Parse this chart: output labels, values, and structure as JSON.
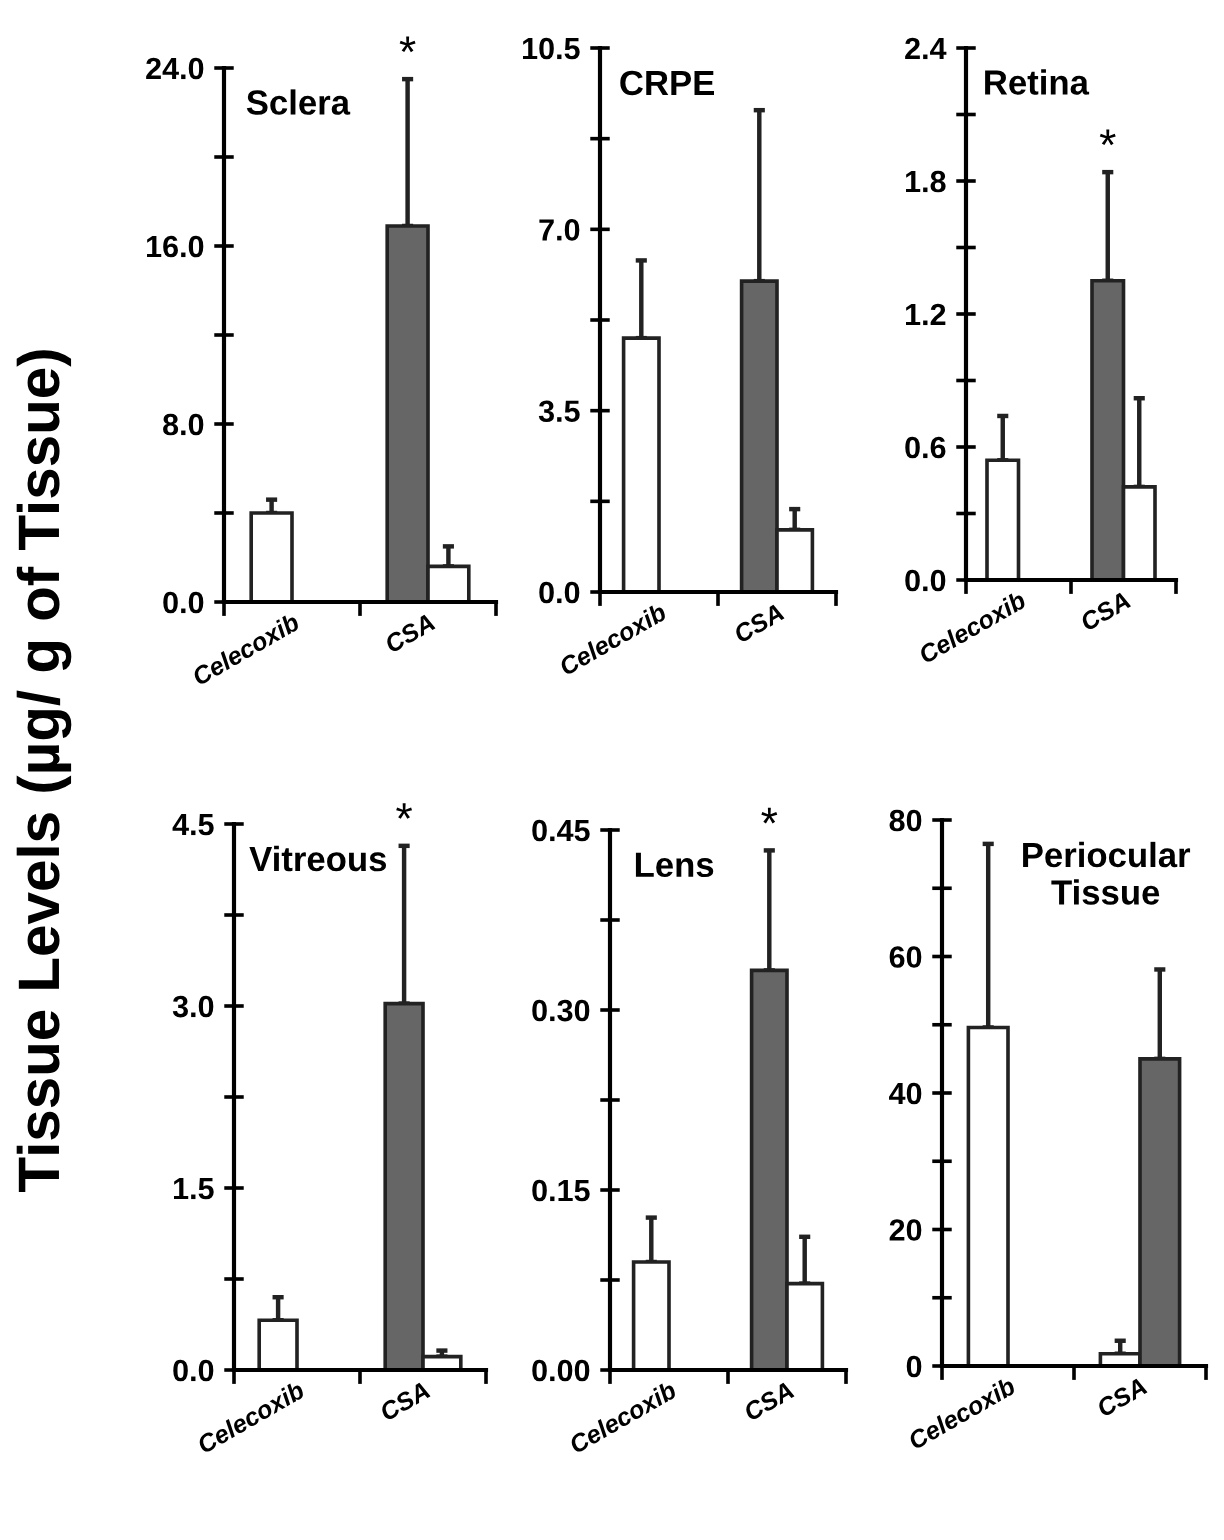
{
  "chart_data": [
    {
      "type": "bar",
      "title": "Sclera",
      "ylabel": "Tissue Levels (µg/ g of Tissue)",
      "categories": [
        "Celecoxib",
        "CSA"
      ],
      "ylim": [
        0,
        24
      ],
      "yticks": [
        {
          "value": 0,
          "label": "0.0"
        },
        {
          "value": 4,
          "label": null
        },
        {
          "value": 8,
          "label": "8.0"
        },
        {
          "value": 12,
          "label": null
        },
        {
          "value": 16,
          "label": "16.0"
        },
        {
          "value": 20,
          "label": null
        },
        {
          "value": 24,
          "label": "24.0"
        }
      ],
      "annotations": [
        {
          "text": "*",
          "x": "CSA",
          "y": 23.5
        }
      ],
      "series": [
        {
          "colors": [
            "#ffffff",
            "#666666"
          ],
          "values": [
            4.0,
            16.9
          ],
          "errors": [
            [
              4.0,
              4.6
            ],
            [
              16.9,
              23.5
            ]
          ]
        },
        {
          "color": "#ffffff",
          "values": [
            null,
            1.6
          ],
          "errors": [
            null,
            [
              1.6,
              2.5
            ]
          ]
        }
      ]
    },
    {
      "type": "bar",
      "title": "CRPE",
      "categories": [
        "Celecoxib",
        "CSA"
      ],
      "ylim": [
        0,
        10.5
      ],
      "yticks": [
        {
          "value": 0,
          "label": "0.0"
        },
        {
          "value": 1.75,
          "label": null
        },
        {
          "value": 3.5,
          "label": "3.5"
        },
        {
          "value": 5.25,
          "label": null
        },
        {
          "value": 7,
          "label": "7.0"
        },
        {
          "value": 8.75,
          "label": null
        },
        {
          "value": 10.5,
          "label": "10.5"
        }
      ],
      "series": [
        {
          "colors": [
            "#ffffff",
            "#666666"
          ],
          "values": [
            4.9,
            6.0
          ],
          "errors": [
            [
              4.9,
              6.4
            ],
            [
              6.0,
              9.3
            ]
          ]
        },
        {
          "color": "#ffffff",
          "values": [
            null,
            1.2
          ],
          "errors": [
            null,
            [
              1.2,
              1.6
            ]
          ]
        }
      ]
    },
    {
      "type": "bar",
      "title": "Retina",
      "categories": [
        "Celecoxib",
        "CSA"
      ],
      "ylim": [
        0,
        2.4
      ],
      "yticks": [
        {
          "value": 0,
          "label": "0.0"
        },
        {
          "value": 0.3,
          "label": null
        },
        {
          "value": 0.6,
          "label": "0.6"
        },
        {
          "value": 0.9,
          "label": null
        },
        {
          "value": 1.2,
          "label": "1.2"
        },
        {
          "value": 1.5,
          "label": null
        },
        {
          "value": 1.8,
          "label": "1.8"
        },
        {
          "value": 2.1,
          "label": null
        },
        {
          "value": 2.4,
          "label": "2.4"
        }
      ],
      "annotations": [
        {
          "text": "*",
          "x": "CSA",
          "y": 1.84
        }
      ],
      "series": [
        {
          "colors": [
            "#ffffff",
            "#666666"
          ],
          "values": [
            0.54,
            1.35
          ],
          "errors": [
            [
              0.54,
              0.74
            ],
            [
              1.35,
              1.84
            ]
          ]
        },
        {
          "color": "#ffffff",
          "values": [
            null,
            0.42
          ],
          "errors": [
            null,
            [
              0.42,
              0.82
            ]
          ]
        }
      ]
    },
    {
      "type": "bar",
      "title": "Vitreous",
      "categories": [
        "Celecoxib",
        "CSA"
      ],
      "ylim": [
        0,
        4.5
      ],
      "yticks": [
        {
          "value": 0,
          "label": "0.0"
        },
        {
          "value": 0.75,
          "label": null
        },
        {
          "value": 1.5,
          "label": "1.5"
        },
        {
          "value": 2.25,
          "label": null
        },
        {
          "value": 3,
          "label": "3.0"
        },
        {
          "value": 3.75,
          "label": null
        },
        {
          "value": 4.5,
          "label": "4.5"
        }
      ],
      "annotations": [
        {
          "text": "*",
          "x": "CSA",
          "y": 4.32
        }
      ],
      "series": [
        {
          "colors": [
            "#ffffff",
            "#666666"
          ],
          "values": [
            0.41,
            3.02
          ],
          "errors": [
            [
              0.41,
              0.6
            ],
            [
              3.02,
              4.32
            ]
          ]
        },
        {
          "color": "#ffffff",
          "values": [
            null,
            0.11
          ],
          "errors": [
            null,
            [
              0.11,
              0.16
            ]
          ]
        }
      ]
    },
    {
      "type": "bar",
      "title": "Lens",
      "categories": [
        "Celecoxib",
        "CSA"
      ],
      "ylim": [
        0,
        0.45
      ],
      "yticks": [
        {
          "value": 0,
          "label": "0.00"
        },
        {
          "value": 0.075,
          "label": null
        },
        {
          "value": 0.15,
          "label": "0.15"
        },
        {
          "value": 0.225,
          "label": null
        },
        {
          "value": 0.3,
          "label": "0.30"
        },
        {
          "value": 0.375,
          "label": null
        },
        {
          "value": 0.45,
          "label": "0.45"
        }
      ],
      "annotations": [
        {
          "text": "*",
          "x": "CSA",
          "y": 0.433
        }
      ],
      "series": [
        {
          "colors": [
            "#ffffff",
            "#666666"
          ],
          "values": [
            0.09,
            0.333
          ],
          "errors": [
            [
              0.09,
              0.127
            ],
            [
              0.333,
              0.433
            ]
          ]
        },
        {
          "color": "#ffffff",
          "values": [
            null,
            0.072
          ],
          "errors": [
            null,
            [
              0.072,
              0.111
            ]
          ]
        }
      ]
    },
    {
      "type": "bar",
      "title": "Periocular\nTissue",
      "categories": [
        "Celecoxib",
        "CSA"
      ],
      "ylim": [
        0,
        80
      ],
      "yticks": [
        0,
        {
          "value": 10,
          "label": null
        },
        20,
        {
          "value": 30,
          "label": null
        },
        40,
        {
          "value": 50,
          "label": null
        },
        60,
        {
          "value": 70,
          "label": null
        },
        80
      ],
      "series": [
        {
          "color": "#ffffff",
          "values": [
            49.6,
            1.8
          ],
          "errors": [
            [
              49.6,
              76.5
            ],
            [
              1.8,
              3.7
            ]
          ]
        },
        {
          "color": "#666666",
          "values": [
            null,
            45.0
          ],
          "errors": [
            null,
            [
              45.0,
              58.1
            ]
          ]
        }
      ]
    }
  ]
}
